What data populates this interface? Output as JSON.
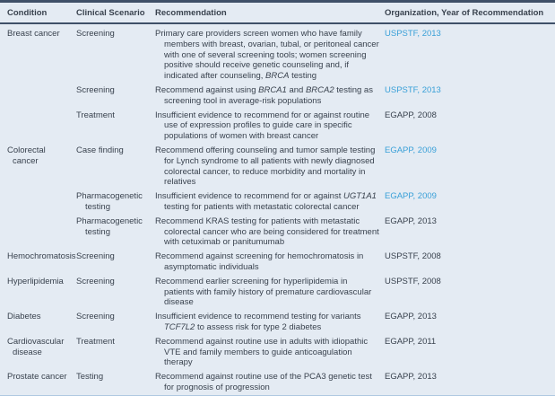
{
  "colors": {
    "background": "#e4ebf3",
    "text": "#39424e",
    "rule_dark": "#3f5068",
    "rule_light": "#aec8e0",
    "link_blue": "#39a0d8"
  },
  "table": {
    "columns": [
      {
        "key": "condition",
        "label": "Condition"
      },
      {
        "key": "clinical_scenario",
        "label": "Clinical Scenario"
      },
      {
        "key": "recommendation",
        "label": "Recommendation"
      },
      {
        "key": "organization_year",
        "label": "Organization, Year of Recommendation"
      }
    ],
    "rows": [
      {
        "condition": "Breast cancer",
        "clinical_scenario": "Screening",
        "recommendation": [
          {
            "text": "Primary care providers screen women who have family members with breast, ovarian, tubal, or peritoneal cancer with one of several screening tools; women screening positive should receive genetic counseling and, if indicated after counseling, "
          },
          {
            "text": "BRCA",
            "italic": true
          },
          {
            "text": " testing"
          }
        ],
        "organization_year": "USPSTF, 2013",
        "organization_link": true
      },
      {
        "condition": "",
        "clinical_scenario": "Screening",
        "recommendation": [
          {
            "text": "Recommend against using "
          },
          {
            "text": "BRCA1",
            "italic": true
          },
          {
            "text": " and "
          },
          {
            "text": "BRCA2",
            "italic": true
          },
          {
            "text": " testing as screening tool in average-risk populations"
          }
        ],
        "organization_year": "USPSTF, 2013",
        "organization_link": true
      },
      {
        "condition": "",
        "clinical_scenario": "Treatment",
        "recommendation": [
          {
            "text": "Insufficient evidence to recommend for or against routine use of expression profiles to guide care in specific populations of women with breast cancer"
          }
        ],
        "organization_year": "EGAPP, 2008",
        "organization_link": false
      },
      {
        "condition": "Colorectal cancer",
        "clinical_scenario": "Case finding",
        "recommendation": [
          {
            "text": "Recommend offering counseling and tumor sample testing for Lynch syndrome to all patients with newly diagnosed colorectal cancer, to reduce morbidity and mortality in relatives"
          }
        ],
        "organization_year": "EGAPP, 2009",
        "organization_link": true
      },
      {
        "condition": "",
        "clinical_scenario": "Pharmacogenetic testing",
        "recommendation": [
          {
            "text": "Insufficient evidence to recommend for or against "
          },
          {
            "text": "UGT1A1",
            "italic": true
          },
          {
            "text": " testing for patients with metastatic colorectal cancer"
          }
        ],
        "organization_year": "EGAPP, 2009",
        "organization_link": true
      },
      {
        "condition": "",
        "clinical_scenario": "Pharmacogenetic testing",
        "recommendation": [
          {
            "text": "Recommend KRAS testing for patients with metastatic colorectal cancer who are being considered for treatment with cetuximab or panitumumab"
          }
        ],
        "organization_year": "EGAPP, 2013",
        "organization_link": false
      },
      {
        "condition": "Hemochromatosis",
        "clinical_scenario": "Screening",
        "recommendation": [
          {
            "text": "Recommend against screening for hemochromatosis in asymptomatic individuals"
          }
        ],
        "organization_year": "USPSTF, 2008",
        "organization_link": false
      },
      {
        "condition": "Hyperlipidemia",
        "clinical_scenario": "Screening",
        "recommendation": [
          {
            "text": "Recommend earlier screening for hyperlipidemia in patients with family history of premature cardiovascular disease"
          }
        ],
        "organization_year": "USPSTF, 2008",
        "organization_link": false
      },
      {
        "condition": "Diabetes",
        "clinical_scenario": "Screening",
        "recommendation": [
          {
            "text": "Insufficient evidence to recommend testing for variants "
          },
          {
            "text": "TCF7L2",
            "italic": true
          },
          {
            "text": " to assess risk for type 2 diabetes"
          }
        ],
        "organization_year": "EGAPP, 2013",
        "organization_link": false
      },
      {
        "condition": "Cardiovascular disease",
        "clinical_scenario": "Treatment",
        "recommendation": [
          {
            "text": "Recommend against routine use in adults with idiopathic VTE and family members to guide anticoagulation therapy"
          }
        ],
        "organization_year": "EGAPP, 2011",
        "organization_link": false
      },
      {
        "condition": "Prostate cancer",
        "clinical_scenario": "Testing",
        "recommendation": [
          {
            "text": "Recommend against routine use of the PCA3 genetic test for prognosis of progression"
          }
        ],
        "organization_year": "EGAPP, 2013",
        "organization_link": false
      }
    ]
  }
}
